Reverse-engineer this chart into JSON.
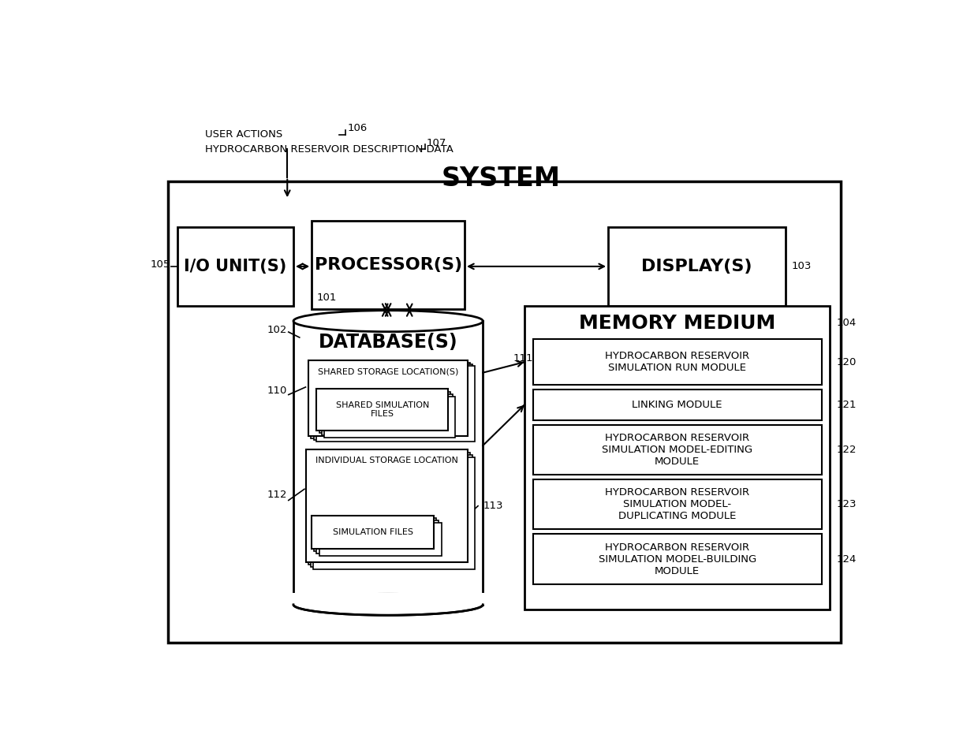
{
  "bg_color": "#ffffff",
  "title": "SYSTEM",
  "labels": {
    "user_actions": "USER ACTIONS",
    "hydro_desc": "HYDROCARBON RESERVOIR DESCRIPTION DATA",
    "io_unit": "I/O UNIT(S)",
    "processor": "PROCESSOR(S)",
    "display": "DISPLAY(S)",
    "memory_medium": "MEMORY MEDIUM",
    "database": "DATABASE(S)",
    "shared_storage": "SHARED STORAGE LOCATION(S)",
    "shared_sim_files": "SHARED SIMULATION\nFILES",
    "individual_storage": "INDIVIDUAL STORAGE LOCATION",
    "sim_files": "SIMULATION FILES",
    "module120": "HYDROCARBON RESERVOIR\nSIMULATION RUN MODULE",
    "module121": "LINKING MODULE",
    "module122": "HYDROCARBON RESERVOIR\nSIMULATION MODEL-EDITING\nMODULE",
    "module123": "HYDROCARBON RESERVOIR\nSIMULATION MODEL-\nDUPLICATING MODULE",
    "module124": "HYDROCARBON RESERVOIR\nSIMULATION MODEL-BUILDING\nMODULE"
  },
  "refs": {
    "n106": "106",
    "n107": "107",
    "n105": "105",
    "n101": "101",
    "n103": "103",
    "n104": "104",
    "n102": "102",
    "n110": "110",
    "n111": "111",
    "n112": "112",
    "n113": "113",
    "n120": "120",
    "n121": "121",
    "n122": "122",
    "n123": "123",
    "n124": "124"
  }
}
